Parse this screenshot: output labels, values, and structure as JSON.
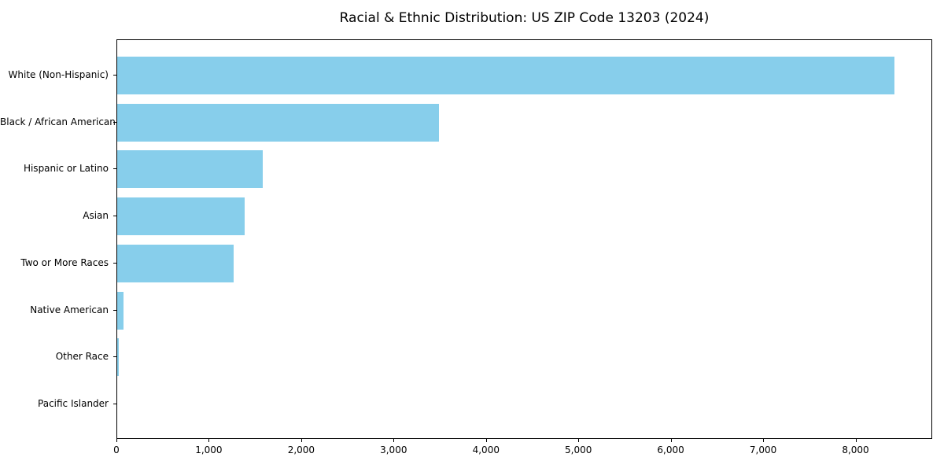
{
  "title": "Racial & Ethnic Distribution: US ZIP Code 13203 (2024)",
  "colors": {
    "bar": "#87CEEB",
    "frame": "#000000",
    "text": "#000000",
    "background": "#ffffff"
  },
  "chart_data": {
    "type": "bar",
    "orientation": "horizontal",
    "title": "Racial & Ethnic Distribution: US ZIP Code 13203 (2024)",
    "xlabel": "",
    "ylabel": "",
    "categories": [
      "White (Non-Hispanic)",
      "Black / African American",
      "Hispanic or Latino",
      "Asian",
      "Two or More Races",
      "Native American",
      "Other Race",
      "Pacific Islander"
    ],
    "values": [
      8415,
      3485,
      1575,
      1375,
      1260,
      65,
      20,
      0
    ],
    "xlim": [
      0,
      8830
    ],
    "x_ticks": [
      0,
      1000,
      2000,
      3000,
      4000,
      5000,
      6000,
      7000,
      8000
    ],
    "x_tick_labels": [
      "0",
      "1,000",
      "2,000",
      "3,000",
      "4,000",
      "5,000",
      "6,000",
      "7,000",
      "8,000"
    ],
    "grid": false,
    "legend": null,
    "bar_color": "#87CEEB"
  }
}
